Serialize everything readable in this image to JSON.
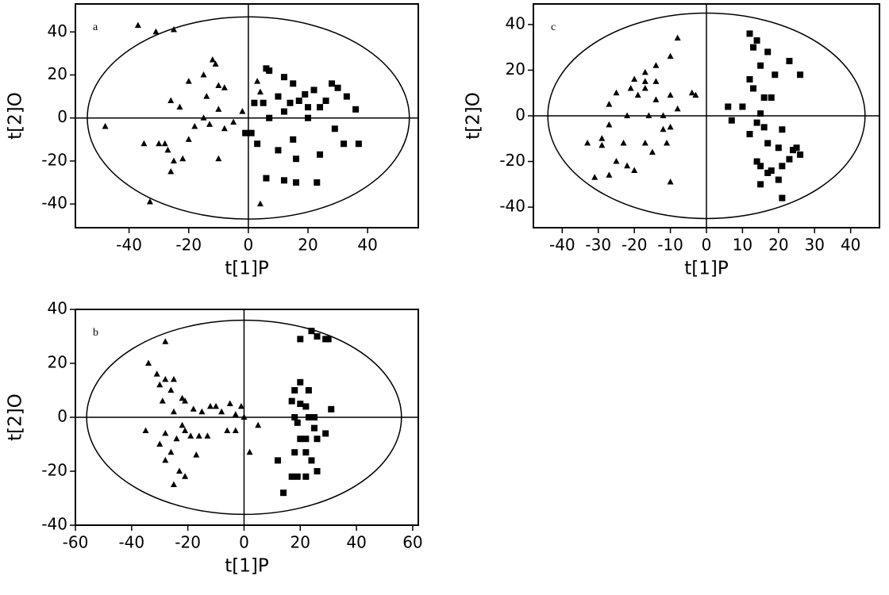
{
  "chart_data": [
    {
      "type": "scatter",
      "annotation": "a",
      "xlabel": "t[1]P",
      "ylabel": "t[2]O",
      "xlim": [
        -58,
        57
      ],
      "ylim": [
        -51,
        53
      ],
      "xticks": [
        -40,
        -20,
        0,
        20,
        40
      ],
      "yticks": [
        -40,
        -20,
        0,
        20,
        40
      ],
      "ellipse": {
        "x_radius": 54,
        "y_radius": 47
      },
      "series": [
        {
          "marker": "triangle",
          "color": "#000000",
          "x": [
            -37,
            -31,
            -25,
            -12,
            -11,
            -15,
            -20,
            -10,
            -8,
            -14,
            -26,
            -23,
            -10,
            -15,
            -13,
            -8,
            -5,
            -18,
            -20,
            -30,
            -28,
            -35,
            -27,
            -22,
            -26,
            -25,
            -10,
            -48,
            -33,
            3,
            4,
            4,
            -2
          ],
          "values": [
            43,
            40,
            41,
            27,
            25,
            20,
            17,
            15,
            14,
            10,
            8,
            5,
            4,
            0,
            -3,
            -5,
            -2,
            -4,
            -10,
            -12,
            -12,
            -12,
            -15,
            -19,
            -25,
            -20,
            -19,
            -4,
            -39,
            17,
            12,
            -40,
            3
          ]
        },
        {
          "marker": "square",
          "color": "#000000",
          "x": [
            6,
            7,
            10,
            12,
            15,
            19,
            22,
            28,
            30,
            33,
            36,
            37,
            2,
            5,
            7,
            12,
            14,
            17,
            20,
            24,
            29,
            20,
            26,
            15,
            16,
            12,
            6,
            23,
            24,
            32,
            1,
            -1,
            3,
            16,
            10
          ],
          "values": [
            23,
            22,
            10,
            19,
            16,
            11,
            13,
            16,
            14,
            10,
            4,
            -12,
            7,
            7,
            0,
            3,
            7,
            8,
            5,
            5,
            -5,
            0,
            8,
            -10,
            -30,
            -29,
            -28,
            -30,
            -17,
            -12,
            -7,
            -7,
            -12,
            -19,
            -15
          ]
        }
      ]
    },
    {
      "type": "scatter",
      "annotation": "c",
      "xlabel": "t[1]P",
      "ylabel": "t[2]O",
      "xlim": [
        -48,
        48
      ],
      "ylim": [
        -49,
        49
      ],
      "xticks": [
        -40,
        -30,
        -20,
        -10,
        0,
        10,
        20,
        30,
        40
      ],
      "yticks": [
        -40,
        -20,
        0,
        20,
        40
      ],
      "ellipse": {
        "x_radius": 44,
        "y_radius": 45
      },
      "series": [
        {
          "marker": "triangle",
          "color": "#000000",
          "x": [
            -8,
            -10,
            -14,
            -17,
            -20,
            -17,
            -14,
            -17,
            -21,
            -25,
            -27,
            -19,
            -14,
            -10,
            -4,
            -3,
            -8,
            -12,
            -16,
            -22,
            -27,
            -29,
            -29,
            -23,
            -17,
            -12,
            -10,
            -11,
            -15,
            -22,
            -20,
            -27,
            -31,
            -10,
            -33,
            -25
          ],
          "values": [
            34,
            26,
            22,
            19,
            16,
            15,
            15,
            12,
            12,
            10,
            5,
            9,
            7,
            9,
            10,
            9,
            3,
            0,
            0,
            0,
            -4,
            -10,
            -13,
            -12,
            -12,
            -6,
            -5,
            -12,
            -16,
            -22,
            -24,
            -26,
            -27,
            -29,
            -12,
            -20
          ]
        },
        {
          "marker": "square",
          "color": "#000000",
          "x": [
            12,
            14,
            13,
            17,
            23,
            15,
            19,
            12,
            26,
            13,
            16,
            18,
            10,
            15,
            16,
            21,
            14,
            7,
            12,
            17,
            20,
            14,
            15,
            18,
            21,
            17,
            24,
            25,
            26,
            23,
            20,
            15,
            21,
            6
          ],
          "values": [
            36,
            33,
            30,
            28,
            24,
            22,
            18,
            16,
            18,
            12,
            8,
            8,
            4,
            1,
            -5,
            -6,
            -3,
            -2,
            -8,
            -12,
            -14,
            -20,
            -22,
            -24,
            -22,
            -25,
            -15,
            -14,
            -17,
            -19,
            -28,
            -30,
            -36,
            4
          ]
        }
      ]
    },
    {
      "type": "scatter",
      "annotation": "b",
      "xlabel": "t[1]P",
      "ylabel": "t[2]O",
      "xlim": [
        -60,
        62
      ],
      "ylim": [
        -40,
        40
      ],
      "xticks": [
        -60,
        -40,
        -20,
        0,
        20,
        40,
        60
      ],
      "yticks": [
        -40,
        -20,
        0,
        20,
        40
      ],
      "ellipse": {
        "x_radius": 56,
        "y_radius": 36
      },
      "series": [
        {
          "marker": "triangle",
          "color": "#000000",
          "x": [
            -28,
            -34,
            -31,
            -28,
            -25,
            -30,
            -26,
            -22,
            -21,
            -29,
            -18,
            -12,
            -10,
            -5,
            -1,
            -15,
            -8,
            -3,
            -25,
            -22,
            -35,
            -28,
            -24,
            -21,
            -19,
            -16,
            -13,
            -3,
            -6,
            -30,
            -26,
            -28,
            -23,
            -21,
            -25,
            -17,
            5,
            0,
            2
          ],
          "values": [
            28,
            20,
            16,
            14,
            14,
            12,
            10,
            7,
            6,
            6,
            3,
            4,
            4,
            5,
            4,
            2,
            2,
            1,
            2,
            -3,
            -5,
            -6,
            -8,
            -5,
            -7,
            -7,
            -7,
            -5,
            -5,
            -10,
            -13,
            -16,
            -20,
            -22,
            -25,
            -14,
            -3,
            0,
            -13
          ]
        },
        {
          "marker": "square",
          "color": "#000000",
          "x": [
            24,
            26,
            29,
            30,
            20,
            20,
            18,
            23,
            17,
            20,
            22,
            23,
            18,
            19,
            25,
            31,
            25,
            29,
            20,
            22,
            26,
            18,
            22,
            12,
            24,
            19,
            17,
            22,
            26,
            14
          ],
          "values": [
            32,
            30,
            29,
            29,
            29,
            13,
            10,
            10,
            6,
            5,
            4,
            0,
            0,
            -2,
            0,
            3,
            -4,
            -6,
            -8,
            -8,
            -8,
            -13,
            -13,
            -16,
            -16,
            -22,
            -22,
            -22,
            -20,
            -28
          ]
        }
      ]
    }
  ]
}
